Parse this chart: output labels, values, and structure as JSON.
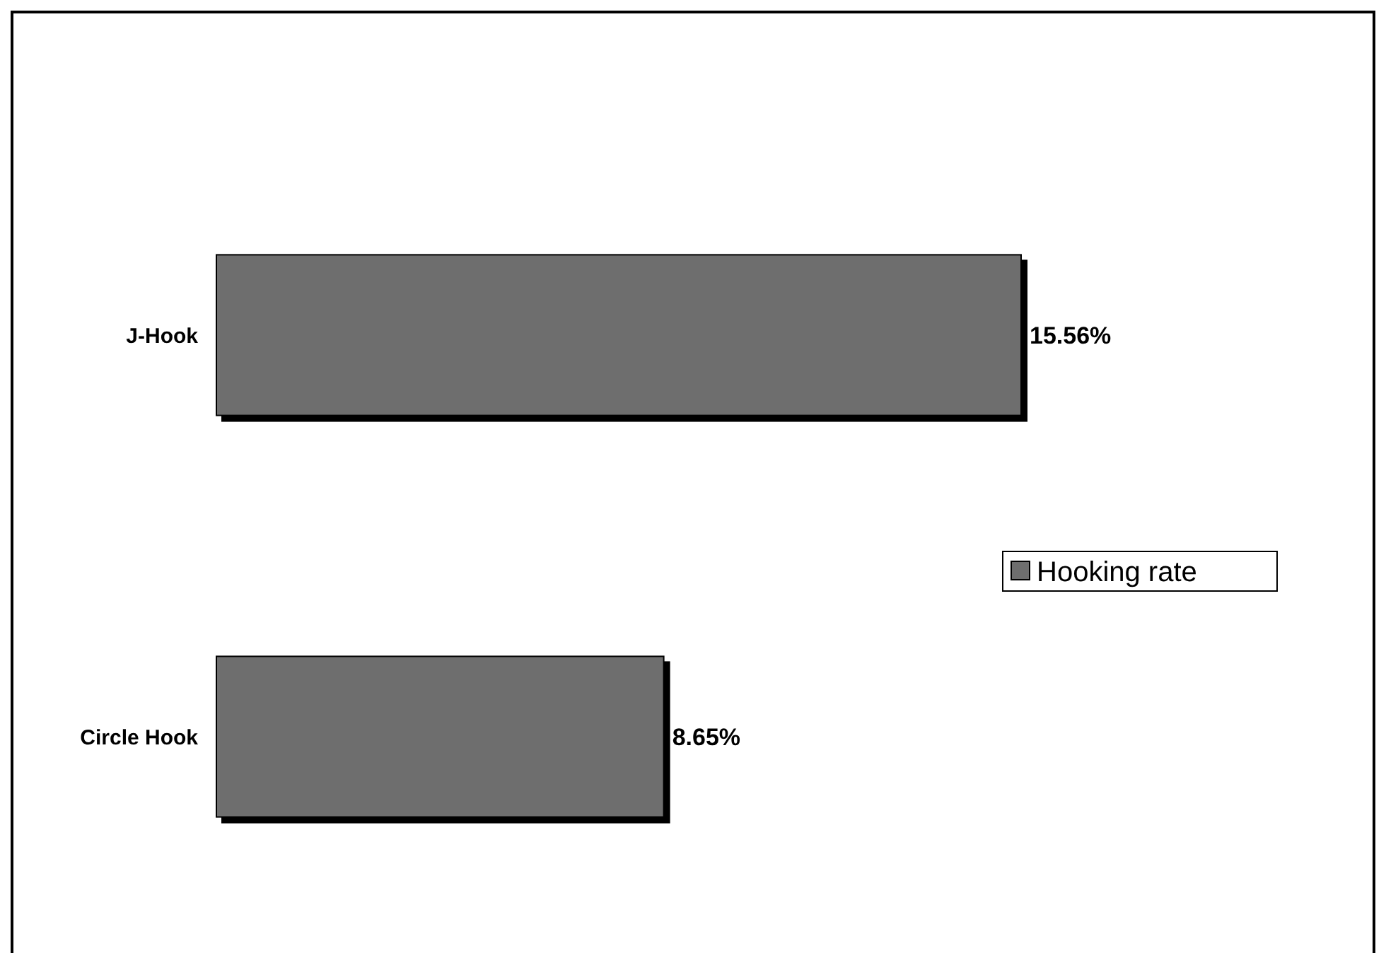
{
  "chart_data": {
    "type": "bar",
    "orientation": "horizontal",
    "categories": [
      "J-Hook",
      "Circle Hook"
    ],
    "series": [
      {
        "name": "Hooking rate",
        "color": "#6e6e6e",
        "values": [
          15.56,
          8.65
        ],
        "value_labels": [
          "15.56%",
          "8.65%"
        ]
      }
    ],
    "legend": "right"
  }
}
